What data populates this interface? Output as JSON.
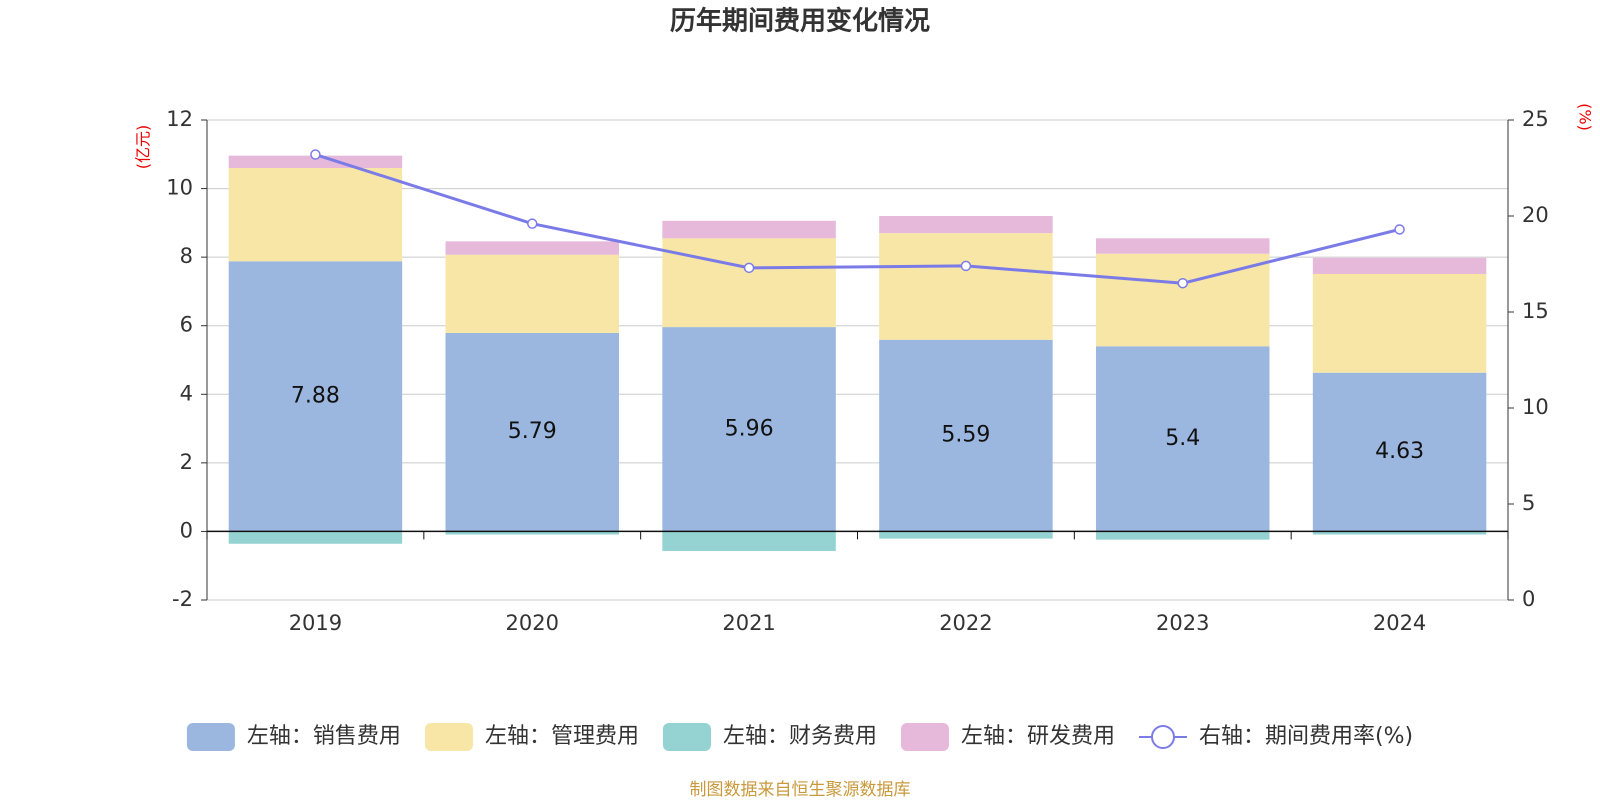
{
  "chart_data": {
    "type": "bar",
    "title": "历年期间费用变化情况",
    "y_label": "(亿元)",
    "y2_label": "(%)",
    "categories": [
      "2019",
      "2020",
      "2021",
      "2022",
      "2023",
      "2024"
    ],
    "series": [
      {
        "name": "左轴：销售费用",
        "color": "#9bb7e0",
        "values": [
          7.88,
          5.79,
          5.96,
          5.59,
          5.4,
          4.63
        ],
        "data_labels": true
      },
      {
        "name": "左轴：管理费用",
        "color": "#f7e6a6",
        "values": [
          2.72,
          2.28,
          2.59,
          3.11,
          2.7,
          2.88
        ]
      },
      {
        "name": "左轴：财务费用",
        "color": "#95d3d3",
        "values": [
          -0.36,
          -0.09,
          -0.57,
          -0.21,
          -0.24,
          -0.09
        ]
      },
      {
        "name": "左轴：研发费用",
        "color": "#e6b8d9",
        "values": [
          0.36,
          0.39,
          0.51,
          0.5,
          0.45,
          0.47
        ]
      },
      {
        "name": "右轴：期间费用率(%)",
        "color": "#7b7be8",
        "type": "line",
        "axis": "y2",
        "values": [
          23.2,
          19.6,
          17.3,
          17.4,
          16.5,
          19.3
        ]
      }
    ],
    "ylim": [
      -2,
      12
    ],
    "yticks": [
      -2,
      0,
      2,
      4,
      6,
      8,
      10,
      12
    ],
    "y2lim": [
      0,
      25
    ],
    "y2ticks": [
      0,
      5,
      10,
      15,
      20,
      25
    ],
    "grid": true,
    "legend": "bottom",
    "source": "制图数据来自恒生聚源数据库"
  }
}
